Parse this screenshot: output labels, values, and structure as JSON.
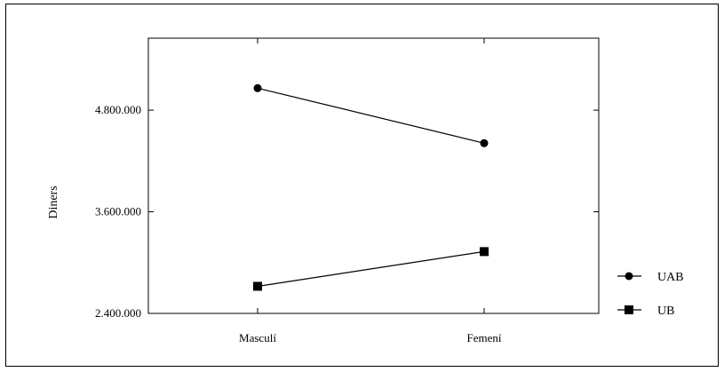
{
  "chart_data": {
    "type": "line",
    "categories": [
      "Masculí",
      "Femení"
    ],
    "series": [
      {
        "name": "UAB",
        "marker": "circle",
        "values": [
          5060000,
          4410000
        ]
      },
      {
        "name": "UB",
        "marker": "square",
        "values": [
          2720000,
          3130000
        ]
      }
    ],
    "ylabel": "Diners",
    "xlabel": "",
    "ylim": [
      2400000,
      5650000
    ],
    "yticks": [
      2400000,
      3600000,
      4800000
    ],
    "ytick_labels": [
      "2.400.000",
      "3.600.000",
      "4.800.000"
    ],
    "legend_position": "right",
    "grid": false,
    "line_color": "#000000"
  }
}
